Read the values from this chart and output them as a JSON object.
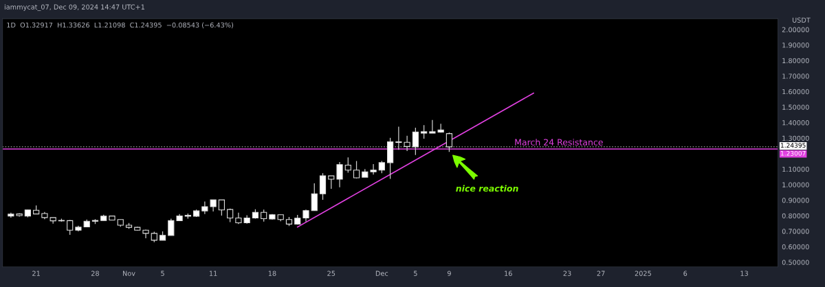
{
  "chart_data": {
    "type": "candlestick",
    "title": "1D  O1.32917  H1.33626  L1.21098  C1.24395  −0.08543 (−6.43%)",
    "subtitle": "iammycat_07, Dec 09, 2024 14:47 UTC+1",
    "ylabel": "USDT",
    "x": [
      "2024-10-18",
      "2024-10-19",
      "2024-10-20",
      "2024-10-21",
      "2024-10-22",
      "2024-10-23",
      "2024-10-24",
      "2024-10-25",
      "2024-10-26",
      "2024-10-27",
      "2024-10-28",
      "2024-10-29",
      "2024-10-30",
      "2024-10-31",
      "2024-11-01",
      "2024-11-02",
      "2024-11-03",
      "2024-11-04",
      "2024-11-05",
      "2024-11-06",
      "2024-11-07",
      "2024-11-08",
      "2024-11-09",
      "2024-11-10",
      "2024-11-11",
      "2024-11-12",
      "2024-11-13",
      "2024-11-14",
      "2024-11-15",
      "2024-11-16",
      "2024-11-17",
      "2024-11-18",
      "2024-11-19",
      "2024-11-20",
      "2024-11-21",
      "2024-11-22",
      "2024-11-23",
      "2024-11-24",
      "2024-11-25",
      "2024-11-26",
      "2024-11-27",
      "2024-11-28",
      "2024-11-29",
      "2024-11-30",
      "2024-12-01",
      "2024-12-02",
      "2024-12-03",
      "2024-12-04",
      "2024-12-05",
      "2024-12-06",
      "2024-12-07",
      "2024-12-08",
      "2024-12-09"
    ],
    "ohlc": [
      [
        0.798,
        0.82,
        0.788,
        0.81
      ],
      [
        0.811,
        0.816,
        0.794,
        0.801
      ],
      [
        0.798,
        0.837,
        0.79,
        0.837
      ],
      [
        0.835,
        0.866,
        0.811,
        0.811
      ],
      [
        0.814,
        0.824,
        0.777,
        0.788
      ],
      [
        0.788,
        0.788,
        0.749,
        0.767
      ],
      [
        0.768,
        0.781,
        0.762,
        0.767
      ],
      [
        0.768,
        0.772,
        0.677,
        0.707
      ],
      [
        0.707,
        0.736,
        0.699,
        0.726
      ],
      [
        0.728,
        0.775,
        0.728,
        0.764
      ],
      [
        0.764,
        0.777,
        0.746,
        0.769
      ],
      [
        0.769,
        0.806,
        0.769,
        0.797
      ],
      [
        0.798,
        0.798,
        0.772,
        0.772
      ],
      [
        0.775,
        0.775,
        0.729,
        0.739
      ],
      [
        0.739,
        0.753,
        0.716,
        0.725
      ],
      [
        0.725,
        0.729,
        0.703,
        0.707
      ],
      [
        0.707,
        0.71,
        0.655,
        0.686
      ],
      [
        0.686,
        0.697,
        0.629,
        0.642
      ],
      [
        0.642,
        0.699,
        0.642,
        0.673
      ],
      [
        0.673,
        0.781,
        0.673,
        0.768
      ],
      [
        0.768,
        0.811,
        0.768,
        0.798
      ],
      [
        0.797,
        0.814,
        0.781,
        0.803
      ],
      [
        0.797,
        0.84,
        0.792,
        0.831
      ],
      [
        0.831,
        0.892,
        0.811,
        0.858
      ],
      [
        0.858,
        0.902,
        0.827,
        0.902
      ],
      [
        0.902,
        0.902,
        0.801,
        0.837
      ],
      [
        0.84,
        0.846,
        0.759,
        0.785
      ],
      [
        0.785,
        0.82,
        0.746,
        0.754
      ],
      [
        0.754,
        0.803,
        0.749,
        0.785
      ],
      [
        0.785,
        0.842,
        0.781,
        0.822
      ],
      [
        0.822,
        0.84,
        0.762,
        0.781
      ],
      [
        0.779,
        0.811,
        0.775,
        0.806
      ],
      [
        0.806,
        0.806,
        0.764,
        0.775
      ],
      [
        0.775,
        0.792,
        0.733,
        0.746
      ],
      [
        0.746,
        0.805,
        0.742,
        0.784
      ],
      [
        0.785,
        0.84,
        0.762,
        0.833
      ],
      [
        0.833,
        1.009,
        0.833,
        0.941
      ],
      [
        0.941,
        1.074,
        0.902,
        1.057
      ],
      [
        1.057,
        1.057,
        0.973,
        1.035
      ],
      [
        1.035,
        1.146,
        0.983,
        1.129
      ],
      [
        1.126,
        1.176,
        1.077,
        1.094
      ],
      [
        1.094,
        1.152,
        1.041,
        1.044
      ],
      [
        1.048,
        1.1,
        1.048,
        1.083
      ],
      [
        1.083,
        1.133,
        1.065,
        1.094
      ],
      [
        1.094,
        1.152,
        1.074,
        1.142
      ],
      [
        1.142,
        1.302,
        1.038,
        1.276
      ],
      [
        1.276,
        1.374,
        1.224,
        1.272
      ],
      [
        1.273,
        1.315,
        1.217,
        1.246
      ],
      [
        1.244,
        1.367,
        1.191,
        1.339
      ],
      [
        1.332,
        1.384,
        1.296,
        1.341
      ],
      [
        1.332,
        1.417,
        1.332,
        1.341
      ],
      [
        1.339,
        1.393,
        1.335,
        1.352
      ],
      [
        1.32917,
        1.33626,
        1.21098,
        1.24395
      ]
    ],
    "colors": [
      "#ffffff",
      "#000000",
      "#ffffff",
      "#000000",
      "#000000",
      "#000000",
      "#000000",
      "#000000",
      "#ffffff",
      "#ffffff",
      "#ffffff",
      "#ffffff",
      "#000000",
      "#000000",
      "#000000",
      "#000000",
      "#000000",
      "#000000",
      "#ffffff",
      "#ffffff",
      "#ffffff",
      "#ffffff",
      "#ffffff",
      "#ffffff",
      "#ffffff",
      "#000000",
      "#000000",
      "#000000",
      "#ffffff",
      "#ffffff",
      "#000000",
      "#ffffff",
      "#000000",
      "#000000",
      "#ffffff",
      "#ffffff",
      "#ffffff",
      "#ffffff",
      "#000000",
      "#ffffff",
      "#000000",
      "#000000",
      "#ffffff",
      "#ffffff",
      "#ffffff",
      "#ffffff",
      "#000000",
      "#000000",
      "#ffffff",
      "#ffffff",
      "#ffffff",
      "#ffffff",
      "#000000"
    ],
    "series": [
      {
        "type": "line",
        "color": "#e040e0",
        "x": [
          "2024-11-21",
          "2024-12-19"
        ],
        "values": [
          0.727,
          1.59
        ]
      }
    ],
    "ref_lines": [
      {
        "axis": "y",
        "value": 1.23007,
        "label": "1.23007",
        "color": "#e040e0",
        "line_style": "solid"
      },
      {
        "axis": "y",
        "value": 1.24395,
        "label": "1.24395",
        "color": "#888888",
        "line_style": "dotted"
      }
    ],
    "annotations": [
      "nice reaction",
      {
        "text": "March 24 Resistance",
        "x": "2024-12-22",
        "y": 1.23007
      }
    ],
    "xlim": [
      "2024-10-17",
      "2025-01-17"
    ],
    "xticks": [
      {
        "value": "2024-10-21",
        "label": "21"
      },
      {
        "value": "2024-10-28",
        "label": "28"
      },
      {
        "value": "2024-11-01",
        "label": "Nov"
      },
      {
        "value": "2024-11-05",
        "label": "5"
      },
      {
        "value": "2024-11-11",
        "label": "11"
      },
      {
        "value": "2024-11-18",
        "label": "18"
      },
      {
        "value": "2024-11-25",
        "label": "25"
      },
      {
        "value": "2024-12-01",
        "label": "Dec"
      },
      {
        "value": "2024-12-05",
        "label": "5"
      },
      {
        "value": "2024-12-09",
        "label": "9"
      },
      {
        "value": "2024-12-16",
        "label": "16"
      },
      {
        "value": "2024-12-23",
        "label": "23"
      },
      {
        "value": "2024-12-27",
        "label": "27"
      },
      {
        "value": "2025-01-01",
        "label": "2025"
      },
      {
        "value": "2025-01-06",
        "label": "6"
      },
      {
        "value": "2025-01-13",
        "label": "13"
      }
    ],
    "ylim": [
      0.47,
      2.07
    ],
    "yticks": [
      {
        "value": 0.5,
        "label": "0.50000"
      },
      {
        "value": 0.6,
        "label": "0.60000"
      },
      {
        "value": 0.7,
        "label": "0.70000"
      },
      {
        "value": 0.8,
        "label": "0.80000"
      },
      {
        "value": 0.9,
        "label": "0.90000"
      },
      {
        "value": 1.0,
        "label": "1.00000"
      },
      {
        "value": 1.1,
        "label": "1.10000"
      },
      {
        "value": 1.3,
        "label": "1.30000"
      },
      {
        "value": 1.4,
        "label": "1.40000"
      },
      {
        "value": 1.5,
        "label": "1.50000"
      },
      {
        "value": 1.6,
        "label": "1.60000"
      },
      {
        "value": 1.7,
        "label": "1.70000"
      },
      {
        "value": 1.8,
        "label": "1.80000"
      },
      {
        "value": 1.9,
        "label": "1.90000"
      },
      {
        "value": 2.0,
        "label": "2.00000"
      }
    ],
    "grid": false,
    "legend": false
  }
}
